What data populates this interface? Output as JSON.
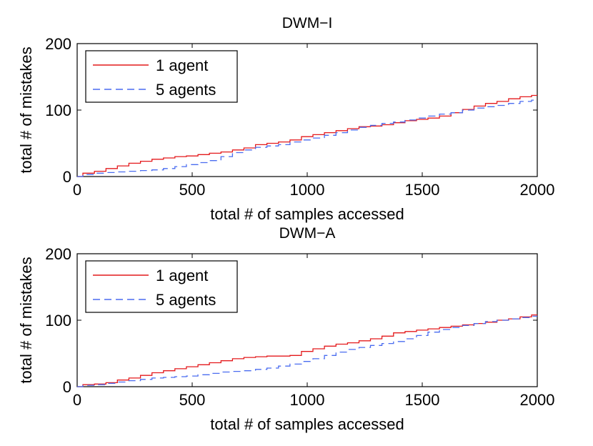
{
  "chart_data": [
    {
      "type": "line",
      "title": "DWM−I",
      "xlabel": "total # of samples accessed",
      "ylabel": "total # of mistakes",
      "xlim": [
        0,
        2000
      ],
      "ylim": [
        0,
        200
      ],
      "xticks": [
        "0",
        "500",
        "1000",
        "1500",
        "2000"
      ],
      "yticks": [
        "0",
        "100",
        "200"
      ],
      "legend_position": "top-left",
      "series": [
        {
          "name": "1 agent",
          "color": "#e41a1c",
          "style": "solid",
          "x": [
            0,
            50,
            100,
            150,
            200,
            250,
            300,
            350,
            400,
            450,
            500,
            550,
            600,
            650,
            700,
            750,
            800,
            850,
            900,
            950,
            1000,
            1050,
            1100,
            1150,
            1200,
            1250,
            1300,
            1350,
            1400,
            1450,
            1500,
            1550,
            1600,
            1650,
            1700,
            1750,
            1800,
            1850,
            1900,
            1950,
            2000
          ],
          "y": [
            0,
            5,
            8,
            12,
            16,
            20,
            23,
            26,
            28,
            30,
            31,
            33,
            35,
            37,
            40,
            43,
            48,
            50,
            52,
            55,
            60,
            63,
            66,
            69,
            72,
            75,
            76,
            78,
            81,
            84,
            86,
            88,
            91,
            96,
            101,
            106,
            110,
            113,
            117,
            120,
            122
          ]
        },
        {
          "name": "5 agents",
          "color": "#4a6cf0",
          "style": "dashed",
          "x": [
            0,
            50,
            100,
            150,
            200,
            250,
            300,
            350,
            400,
            450,
            500,
            550,
            600,
            650,
            700,
            750,
            800,
            850,
            900,
            950,
            1000,
            1050,
            1100,
            1150,
            1200,
            1250,
            1300,
            1350,
            1400,
            1450,
            1500,
            1550,
            1600,
            1650,
            1700,
            1750,
            1800,
            1850,
            1900,
            1950,
            2000
          ],
          "y": [
            0,
            3,
            5,
            6,
            7,
            8,
            9,
            10,
            12,
            15,
            18,
            21,
            24,
            30,
            36,
            40,
            44,
            46,
            48,
            52,
            55,
            58,
            62,
            66,
            70,
            74,
            77,
            80,
            82,
            85,
            88,
            91,
            94,
            96,
            100,
            103,
            105,
            107,
            110,
            113,
            115
          ]
        }
      ]
    },
    {
      "type": "line",
      "title": "DWM−A",
      "xlabel": "total # of samples accessed",
      "ylabel": "total # of mistakes",
      "xlim": [
        0,
        2000
      ],
      "ylim": [
        0,
        200
      ],
      "xticks": [
        "0",
        "500",
        "1000",
        "1500",
        "2000"
      ],
      "yticks": [
        "0",
        "100",
        "200"
      ],
      "legend_position": "top-left",
      "series": [
        {
          "name": "1 agent",
          "color": "#e41a1c",
          "style": "solid",
          "x": [
            0,
            50,
            100,
            150,
            200,
            250,
            300,
            350,
            400,
            450,
            500,
            550,
            600,
            650,
            700,
            750,
            800,
            850,
            900,
            950,
            1000,
            1050,
            1100,
            1150,
            1200,
            1250,
            1300,
            1350,
            1400,
            1450,
            1500,
            1550,
            1600,
            1650,
            1700,
            1750,
            1800,
            1850,
            1900,
            1950,
            2000
          ],
          "y": [
            0,
            3,
            4,
            6,
            10,
            13,
            17,
            21,
            24,
            27,
            30,
            33,
            36,
            39,
            42,
            44,
            45,
            46,
            46,
            47,
            53,
            57,
            61,
            64,
            66,
            69,
            72,
            76,
            81,
            83,
            85,
            87,
            89,
            91,
            93,
            95,
            97,
            100,
            102,
            105,
            108
          ]
        },
        {
          "name": "5 agents",
          "color": "#4a6cf0",
          "style": "dashed",
          "x": [
            0,
            50,
            100,
            150,
            200,
            250,
            300,
            350,
            400,
            450,
            500,
            550,
            600,
            650,
            700,
            750,
            800,
            850,
            900,
            950,
            1000,
            1050,
            1100,
            1150,
            1200,
            1250,
            1300,
            1350,
            1400,
            1450,
            1500,
            1550,
            1600,
            1650,
            1700,
            1750,
            1800,
            1850,
            1900,
            1950,
            2000
          ],
          "y": [
            0,
            2,
            3,
            5,
            7,
            9,
            11,
            13,
            14,
            15,
            16,
            18,
            20,
            22,
            23,
            24,
            26,
            28,
            31,
            34,
            38,
            42,
            47,
            52,
            56,
            59,
            62,
            65,
            68,
            72,
            77,
            82,
            86,
            89,
            92,
            95,
            98,
            100,
            102,
            104,
            106
          ]
        }
      ]
    }
  ]
}
